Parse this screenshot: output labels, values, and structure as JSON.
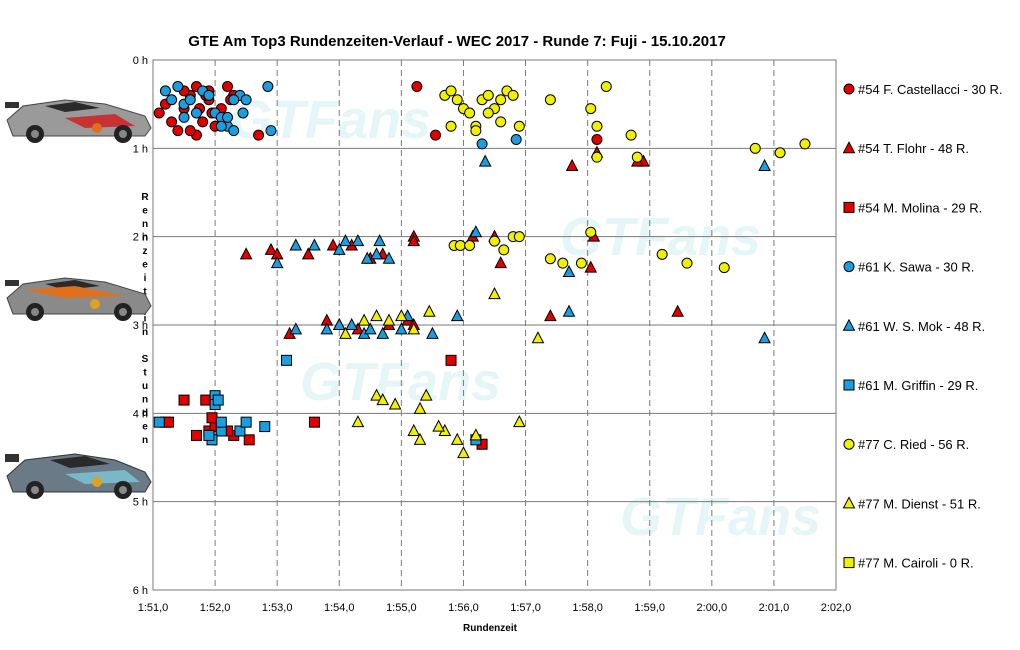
{
  "chart_data": {
    "type": "scatter",
    "title": "GTE Am  Top3  Rundenzeiten-Verlauf  - WEC 2017  - Runde  7: Fuji  - 15.10.2017",
    "xlabel": "Rundenzeit",
    "ylabel": "Rennzeit in Stunden",
    "xlim": [
      111.0,
      122.0
    ],
    "ylim": [
      0,
      6
    ],
    "y_inverted": true,
    "x_tick_labels": [
      "1:51,0",
      "1:52,0",
      "1:53,0",
      "1:54,0",
      "1:55,0",
      "1:56,0",
      "1:57,0",
      "1:58,0",
      "1:59,0",
      "2:00,0",
      "2:01,0",
      "2:02,0"
    ],
    "y_tick_labels": [
      "0 h",
      "1 h",
      "2 h",
      "3 h",
      "4 h",
      "5 h",
      "6 h"
    ],
    "grid": true,
    "legend_position": "right",
    "watermark": "GTFans",
    "car_images": [
      "#54 Ferrari",
      "#61 Ferrari",
      "#77 Porsche"
    ],
    "series": [
      {
        "name": "#54 F. Castellacci - 30 R.",
        "marker": "circle",
        "color": "#e00000",
        "points": [
          [
            111.1,
            0.6
          ],
          [
            111.2,
            0.5
          ],
          [
            111.3,
            0.7
          ],
          [
            111.4,
            0.8
          ],
          [
            111.5,
            0.55
          ],
          [
            111.6,
            0.4
          ],
          [
            111.7,
            0.85
          ],
          [
            111.8,
            0.7
          ],
          [
            111.9,
            0.45
          ],
          [
            112.0,
            0.75
          ],
          [
            111.7,
            0.3
          ],
          [
            111.9,
            0.35
          ],
          [
            112.1,
            0.55
          ],
          [
            112.2,
            0.3
          ],
          [
            112.3,
            0.4
          ],
          [
            112.7,
            0.85
          ],
          [
            111.6,
            0.8
          ],
          [
            115.25,
            0.3
          ],
          [
            115.55,
            0.85
          ],
          [
            118.15,
            0.9
          ],
          [
            111.85,
            0.4
          ],
          [
            112.25,
            0.45
          ],
          [
            111.5,
            0.35
          ],
          [
            111.75,
            0.55
          ],
          [
            111.95,
            0.6
          ]
        ]
      },
      {
        "name": "#54 T. Flohr - 48 R.",
        "marker": "triangle",
        "color": "#e00000",
        "points": [
          [
            117.75,
            1.2
          ],
          [
            118.9,
            1.15
          ],
          [
            118.8,
            1.15
          ],
          [
            112.5,
            2.2
          ],
          [
            112.9,
            2.15
          ],
          [
            113.0,
            2.2
          ],
          [
            113.5,
            2.2
          ],
          [
            113.9,
            2.1
          ],
          [
            114.2,
            2.1
          ],
          [
            114.5,
            2.25
          ],
          [
            114.7,
            2.2
          ],
          [
            115.2,
            2.0
          ],
          [
            115.2,
            2.05
          ],
          [
            116.15,
            2.0
          ],
          [
            116.6,
            2.3
          ],
          [
            116.5,
            2.0
          ],
          [
            118.05,
            2.35
          ],
          [
            118.1,
            2.0
          ],
          [
            113.2,
            3.1
          ],
          [
            113.8,
            2.95
          ],
          [
            114.0,
            3.0
          ],
          [
            114.3,
            3.05
          ],
          [
            114.8,
            3.0
          ],
          [
            115.1,
            2.95
          ],
          [
            115.2,
            3.0
          ],
          [
            117.4,
            2.9
          ],
          [
            119.45,
            2.85
          ],
          [
            118.15,
            1.05
          ]
        ]
      },
      {
        "name": "#54 M. Molina - 29 R.",
        "marker": "square",
        "color": "#e00000",
        "points": [
          [
            111.2,
            4.1
          ],
          [
            111.5,
            3.85
          ],
          [
            111.7,
            4.25
          ],
          [
            111.85,
            3.85
          ],
          [
            111.9,
            4.2
          ],
          [
            112.0,
            4.15
          ],
          [
            112.3,
            4.25
          ],
          [
            112.55,
            4.3
          ],
          [
            112.2,
            4.2
          ],
          [
            113.6,
            4.1
          ],
          [
            115.8,
            3.4
          ],
          [
            116.3,
            4.35
          ],
          [
            111.25,
            4.1
          ],
          [
            111.95,
            4.05
          ]
        ]
      },
      {
        "name": "#61 K. Sawa - 30 R.",
        "marker": "circle",
        "color": "#1c9de0",
        "points": [
          [
            111.2,
            0.35
          ],
          [
            111.3,
            0.45
          ],
          [
            111.4,
            0.3
          ],
          [
            111.5,
            0.5
          ],
          [
            111.6,
            0.45
          ],
          [
            111.7,
            0.6
          ],
          [
            111.8,
            0.35
          ],
          [
            111.9,
            0.4
          ],
          [
            112.0,
            0.6
          ],
          [
            112.1,
            0.65
          ],
          [
            112.2,
            0.75
          ],
          [
            112.3,
            0.8
          ],
          [
            112.4,
            0.4
          ],
          [
            112.5,
            0.45
          ],
          [
            112.85,
            0.3
          ],
          [
            112.9,
            0.8
          ],
          [
            112.3,
            0.45
          ],
          [
            112.45,
            0.6
          ],
          [
            116.3,
            0.95
          ],
          [
            116.85,
            0.9
          ],
          [
            112.1,
            0.75
          ],
          [
            111.5,
            0.65
          ],
          [
            112.2,
            0.65
          ]
        ]
      },
      {
        "name": "#61 W. S. Mok - 48 R.",
        "marker": "triangle",
        "color": "#1c9de0",
        "points": [
          [
            116.35,
            1.15
          ],
          [
            120.85,
            1.2
          ],
          [
            113.0,
            2.3
          ],
          [
            113.3,
            2.1
          ],
          [
            113.6,
            2.1
          ],
          [
            114.0,
            2.15
          ],
          [
            114.1,
            2.05
          ],
          [
            114.3,
            2.05
          ],
          [
            114.6,
            2.2
          ],
          [
            114.65,
            2.05
          ],
          [
            114.8,
            2.25
          ],
          [
            116.2,
            1.95
          ],
          [
            117.7,
            2.4
          ],
          [
            113.8,
            3.05
          ],
          [
            114.0,
            3.0
          ],
          [
            114.2,
            3.0
          ],
          [
            114.4,
            3.1
          ],
          [
            114.5,
            3.05
          ],
          [
            114.7,
            3.1
          ],
          [
            115.0,
            3.05
          ],
          [
            115.1,
            2.9
          ],
          [
            115.5,
            3.1
          ],
          [
            115.9,
            2.9
          ],
          [
            117.7,
            2.85
          ],
          [
            120.85,
            3.15
          ],
          [
            113.3,
            3.05
          ],
          [
            114.45,
            2.25
          ]
        ]
      },
      {
        "name": "#61 M. Griffin - 29 R.",
        "marker": "square",
        "color": "#1c9de0",
        "points": [
          [
            112.8,
            4.15
          ],
          [
            111.1,
            4.1
          ],
          [
            112.0,
            3.8
          ],
          [
            112.0,
            3.9
          ],
          [
            112.1,
            4.2
          ],
          [
            112.4,
            4.2
          ],
          [
            113.15,
            3.4
          ],
          [
            116.2,
            4.3
          ],
          [
            111.95,
            4.3
          ],
          [
            112.1,
            4.1
          ],
          [
            112.5,
            4.1
          ],
          [
            112.05,
            3.85
          ],
          [
            111.9,
            4.25
          ]
        ]
      },
      {
        "name": "#77 C. Ried - 56 R.",
        "marker": "circle",
        "color": "#f0f000",
        "points": [
          [
            115.7,
            0.4
          ],
          [
            115.8,
            0.35
          ],
          [
            115.9,
            0.45
          ],
          [
            116.0,
            0.55
          ],
          [
            116.1,
            0.6
          ],
          [
            116.2,
            0.75
          ],
          [
            116.3,
            0.45
          ],
          [
            116.4,
            0.4
          ],
          [
            116.5,
            0.55
          ],
          [
            116.6,
            0.45
          ],
          [
            116.7,
            0.35
          ],
          [
            116.8,
            0.4
          ],
          [
            116.2,
            0.8
          ],
          [
            116.4,
            0.6
          ],
          [
            116.6,
            0.7
          ],
          [
            116.9,
            0.75
          ],
          [
            117.4,
            0.45
          ],
          [
            118.05,
            0.55
          ],
          [
            118.3,
            0.3
          ],
          [
            118.15,
            0.75
          ],
          [
            118.7,
            0.85
          ],
          [
            118.8,
            1.1
          ],
          [
            118.15,
            1.1
          ],
          [
            120.7,
            1.0
          ],
          [
            121.1,
            1.05
          ],
          [
            121.5,
            0.95
          ],
          [
            115.85,
            2.1
          ],
          [
            115.95,
            2.1
          ],
          [
            116.1,
            2.1
          ],
          [
            116.5,
            2.05
          ],
          [
            116.65,
            2.15
          ],
          [
            116.8,
            2.0
          ],
          [
            116.9,
            2.0
          ],
          [
            117.4,
            2.25
          ],
          [
            117.6,
            2.3
          ],
          [
            117.9,
            2.3
          ],
          [
            118.05,
            1.95
          ],
          [
            119.2,
            2.2
          ],
          [
            119.6,
            2.3
          ],
          [
            120.2,
            2.35
          ],
          [
            115.8,
            0.75
          ]
        ]
      },
      {
        "name": "#77 M. Dienst - 51 R.",
        "marker": "triangle",
        "color": "#f0f000",
        "points": [
          [
            116.5,
            2.65
          ],
          [
            117.2,
            3.15
          ],
          [
            114.1,
            3.1
          ],
          [
            114.4,
            2.95
          ],
          [
            114.6,
            2.9
          ],
          [
            114.8,
            2.95
          ],
          [
            115.0,
            2.9
          ],
          [
            115.2,
            3.05
          ],
          [
            115.45,
            2.85
          ],
          [
            114.6,
            3.8
          ],
          [
            114.7,
            3.85
          ],
          [
            114.9,
            3.9
          ],
          [
            115.3,
            3.95
          ],
          [
            115.4,
            3.8
          ],
          [
            114.3,
            4.1
          ],
          [
            115.2,
            4.2
          ],
          [
            115.3,
            4.3
          ],
          [
            115.7,
            4.2
          ],
          [
            115.9,
            4.3
          ],
          [
            116.0,
            4.45
          ],
          [
            116.2,
            4.25
          ],
          [
            116.9,
            4.1
          ],
          [
            115.6,
            4.15
          ]
        ]
      },
      {
        "name": "#77 M. Cairoli - 0 R.",
        "marker": "square",
        "color": "#f0f000",
        "points": []
      }
    ]
  }
}
